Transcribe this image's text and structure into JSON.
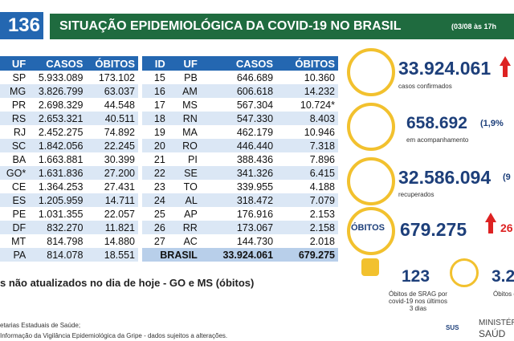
{
  "header": {
    "badge": "136",
    "title": "SITUAÇÃO EPIDEMIOLÓGICA DA COVID-19 NO BRASIL",
    "date": "(03/08 às 17h"
  },
  "left_table": {
    "columns": [
      "UF",
      "CASOS",
      "ÓBITOS"
    ],
    "rows": [
      [
        "SP",
        "5.933.089",
        "173.102"
      ],
      [
        "MG",
        "3.826.799",
        "63.037"
      ],
      [
        "PR",
        "2.698.329",
        "44.548"
      ],
      [
        "RS",
        "2.653.321",
        "40.511"
      ],
      [
        "RJ",
        "2.452.275",
        "74.892"
      ],
      [
        "SC",
        "1.842.056",
        "22.245"
      ],
      [
        "BA",
        "1.663.881",
        "30.399"
      ],
      [
        "GO*",
        "1.631.836",
        "27.200"
      ],
      [
        "CE",
        "1.364.253",
        "27.431"
      ],
      [
        "ES",
        "1.205.959",
        "14.711"
      ],
      [
        "PE",
        "1.031.355",
        "22.057"
      ],
      [
        "DF",
        "832.270",
        "11.821"
      ],
      [
        "MT",
        "814.798",
        "14.880"
      ],
      [
        "PA",
        "814.078",
        "18.551"
      ]
    ]
  },
  "right_table": {
    "columns": [
      "ID",
      "UF",
      "CASOS",
      "ÓBITOS"
    ],
    "rows": [
      [
        "15",
        "PB",
        "646.689",
        "10.360"
      ],
      [
        "16",
        "AM",
        "606.618",
        "14.232"
      ],
      [
        "17",
        "MS",
        "567.304",
        "10.724*"
      ],
      [
        "18",
        "RN",
        "547.330",
        "8.403"
      ],
      [
        "19",
        "MA",
        "462.179",
        "10.946"
      ],
      [
        "20",
        "RO",
        "446.440",
        "7.318"
      ],
      [
        "21",
        "PI",
        "388.436",
        "7.896"
      ],
      [
        "22",
        "SE",
        "341.326",
        "6.415"
      ],
      [
        "23",
        "TO",
        "339.955",
        "4.188"
      ],
      [
        "24",
        "AL",
        "318.472",
        "7.079"
      ],
      [
        "25",
        "AP",
        "176.916",
        "2.153"
      ],
      [
        "26",
        "RR",
        "173.067",
        "2.158"
      ],
      [
        "27",
        "AC",
        "144.730",
        "2.018"
      ]
    ],
    "total": [
      "BRASIL",
      "33.924.061",
      "679.275"
    ]
  },
  "stats": {
    "confirmed": {
      "value": "33.924.061",
      "label": "casos confirmados"
    },
    "monitoring": {
      "value": "658.692",
      "pct": "(1,9%",
      "label": "em acompanhamento"
    },
    "recovered": {
      "value": "32.586.094",
      "pct": "(9",
      "label": "recuperados"
    },
    "deaths": {
      "title": "ÓBITOS",
      "value": "679.275",
      "extra": "26"
    },
    "srag": {
      "value": "123",
      "label": "Óbitos de SRAG por covid-19 nos últimos 3 dias"
    },
    "investigation": {
      "value": "3.2",
      "label": "Óbitos e inve"
    }
  },
  "footer": {
    "note": "s não atualizados no dia de hoje - GO e MS (óbitos)",
    "source1": "etarias Estaduais de Saúde;",
    "source2": "Informação da Vigilância Epidemiológica da Gripe - dados sujeitos a alterações.",
    "sus": "SUS",
    "ministry1": "MINISTÉRIO DA",
    "ministry2": "SAÚD"
  }
}
